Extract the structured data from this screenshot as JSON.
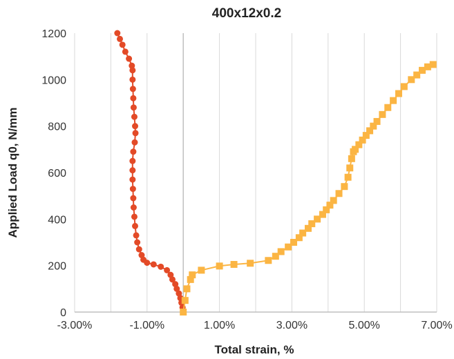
{
  "chart_data": {
    "type": "scatter",
    "title": "400x12x0.2",
    "xlabel": "Total strain, %",
    "ylabel": "Applied Load q0, N/mm",
    "xlim": [
      -3.0,
      7.0
    ],
    "ylim": [
      0,
      1200
    ],
    "x_ticks": [
      "-3.00%",
      "-1.00%",
      "1.00%",
      "3.00%",
      "5.00%",
      "7.00%"
    ],
    "x_tick_values": [
      -3,
      -1,
      1,
      3,
      5,
      7
    ],
    "y_ticks": [
      "0",
      "200",
      "400",
      "600",
      "800",
      "1000",
      "1200"
    ],
    "y_tick_values": [
      0,
      200,
      400,
      600,
      800,
      1000,
      1200
    ],
    "grid": "vertical",
    "legend": "none",
    "series": [
      {
        "color": "#e34a27",
        "marker": "circle",
        "points": [
          [
            0.0,
            0
          ],
          [
            -0.02,
            20
          ],
          [
            -0.05,
            40
          ],
          [
            -0.08,
            60
          ],
          [
            -0.12,
            80
          ],
          [
            -0.18,
            100
          ],
          [
            -0.22,
            120
          ],
          [
            -0.3,
            140
          ],
          [
            -0.35,
            160
          ],
          [
            -0.45,
            180
          ],
          [
            -0.62,
            195
          ],
          [
            -0.82,
            205
          ],
          [
            -1.0,
            212
          ],
          [
            -1.1,
            225
          ],
          [
            -1.15,
            245
          ],
          [
            -1.22,
            270
          ],
          [
            -1.27,
            300
          ],
          [
            -1.3,
            330
          ],
          [
            -1.33,
            370
          ],
          [
            -1.35,
            410
          ],
          [
            -1.37,
            450
          ],
          [
            -1.38,
            490
          ],
          [
            -1.39,
            530
          ],
          [
            -1.4,
            570
          ],
          [
            -1.4,
            610
          ],
          [
            -1.4,
            650
          ],
          [
            -1.38,
            690
          ],
          [
            -1.34,
            730
          ],
          [
            -1.32,
            770
          ],
          [
            -1.33,
            800
          ],
          [
            -1.35,
            840
          ],
          [
            -1.37,
            880
          ],
          [
            -1.38,
            920
          ],
          [
            -1.39,
            960
          ],
          [
            -1.4,
            1000
          ],
          [
            -1.4,
            1040
          ],
          [
            -1.42,
            1060
          ],
          [
            -1.5,
            1090
          ],
          [
            -1.6,
            1120
          ],
          [
            -1.68,
            1150
          ],
          [
            -1.75,
            1175
          ],
          [
            -1.82,
            1200
          ]
        ]
      },
      {
        "color": "#fbb543",
        "marker": "square",
        "points": [
          [
            0.0,
            0
          ],
          [
            0.05,
            50
          ],
          [
            0.1,
            100
          ],
          [
            0.2,
            140
          ],
          [
            0.25,
            160
          ],
          [
            0.5,
            180
          ],
          [
            1.0,
            198
          ],
          [
            1.4,
            205
          ],
          [
            1.85,
            210
          ],
          [
            2.35,
            222
          ],
          [
            2.55,
            240
          ],
          [
            2.7,
            260
          ],
          [
            2.9,
            280
          ],
          [
            3.05,
            300
          ],
          [
            3.2,
            320
          ],
          [
            3.3,
            340
          ],
          [
            3.45,
            360
          ],
          [
            3.55,
            380
          ],
          [
            3.7,
            400
          ],
          [
            3.85,
            420
          ],
          [
            3.95,
            440
          ],
          [
            4.05,
            460
          ],
          [
            4.15,
            480
          ],
          [
            4.3,
            510
          ],
          [
            4.45,
            540
          ],
          [
            4.55,
            580
          ],
          [
            4.6,
            620
          ],
          [
            4.65,
            660
          ],
          [
            4.7,
            690
          ],
          [
            4.75,
            700
          ],
          [
            4.85,
            720
          ],
          [
            4.95,
            740
          ],
          [
            5.05,
            760
          ],
          [
            5.15,
            780
          ],
          [
            5.25,
            800
          ],
          [
            5.35,
            820
          ],
          [
            5.5,
            850
          ],
          [
            5.65,
            880
          ],
          [
            5.8,
            910
          ],
          [
            5.95,
            940
          ],
          [
            6.1,
            970
          ],
          [
            6.3,
            1000
          ],
          [
            6.45,
            1020
          ],
          [
            6.6,
            1040
          ],
          [
            6.75,
            1055
          ],
          [
            6.9,
            1065
          ]
        ]
      }
    ]
  }
}
